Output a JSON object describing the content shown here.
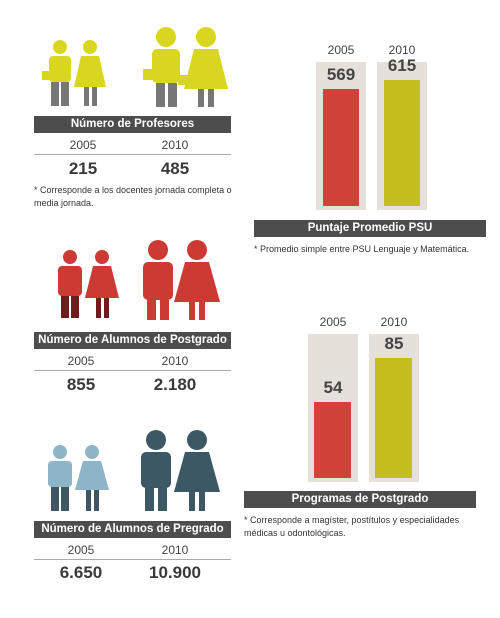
{
  "colors": {
    "profesores": "#d9d621",
    "profesores_legs": "#777777",
    "postgrado": "#cc3a34",
    "postgrado_legs": "#6e1c1c",
    "pregrado_small": "#8eb4c8",
    "pregrado_large": "#3c5865",
    "pregrado_legs": "#3f5663",
    "bar_2005": "#d0423a",
    "bar_2010": "#c4be1e",
    "bar_bg": "#e5e0da",
    "header_bg": "#4d4d4d"
  },
  "profesores": {
    "title": "Número de Profesores",
    "year_a": "2005",
    "year_b": "2010",
    "value_a": "215",
    "value_b": "485",
    "note": "* Corresponde a los docentes jornada completa o media jornada."
  },
  "postgrado": {
    "title": "Número  de Alumnos de Postgrado",
    "year_a": "2005",
    "year_b": "2010",
    "value_a": "855",
    "value_b": "2.180"
  },
  "pregrado": {
    "title": "Número de Alumnos de Pregrado",
    "year_a": "2005",
    "year_b": "2010",
    "value_a": "6.650",
    "value_b": "10.900"
  },
  "psu_note": "* Promedio simple entre PSU Lenguaje y Matemática.",
  "programas_note": "* Corresponde a magíster, postítulos y especialidades médicas u odontológicas.",
  "chart_data": [
    {
      "type": "bar",
      "title": "Puntaje Promedio PSU",
      "categories": [
        "2005",
        "2010"
      ],
      "values": [
        569,
        615
      ],
      "labels": [
        "569",
        "615"
      ]
    },
    {
      "type": "bar",
      "title": "Programas de Postgrado",
      "categories": [
        "2005",
        "2010"
      ],
      "values": [
        54,
        85
      ],
      "labels": [
        "54",
        "85"
      ]
    }
  ]
}
